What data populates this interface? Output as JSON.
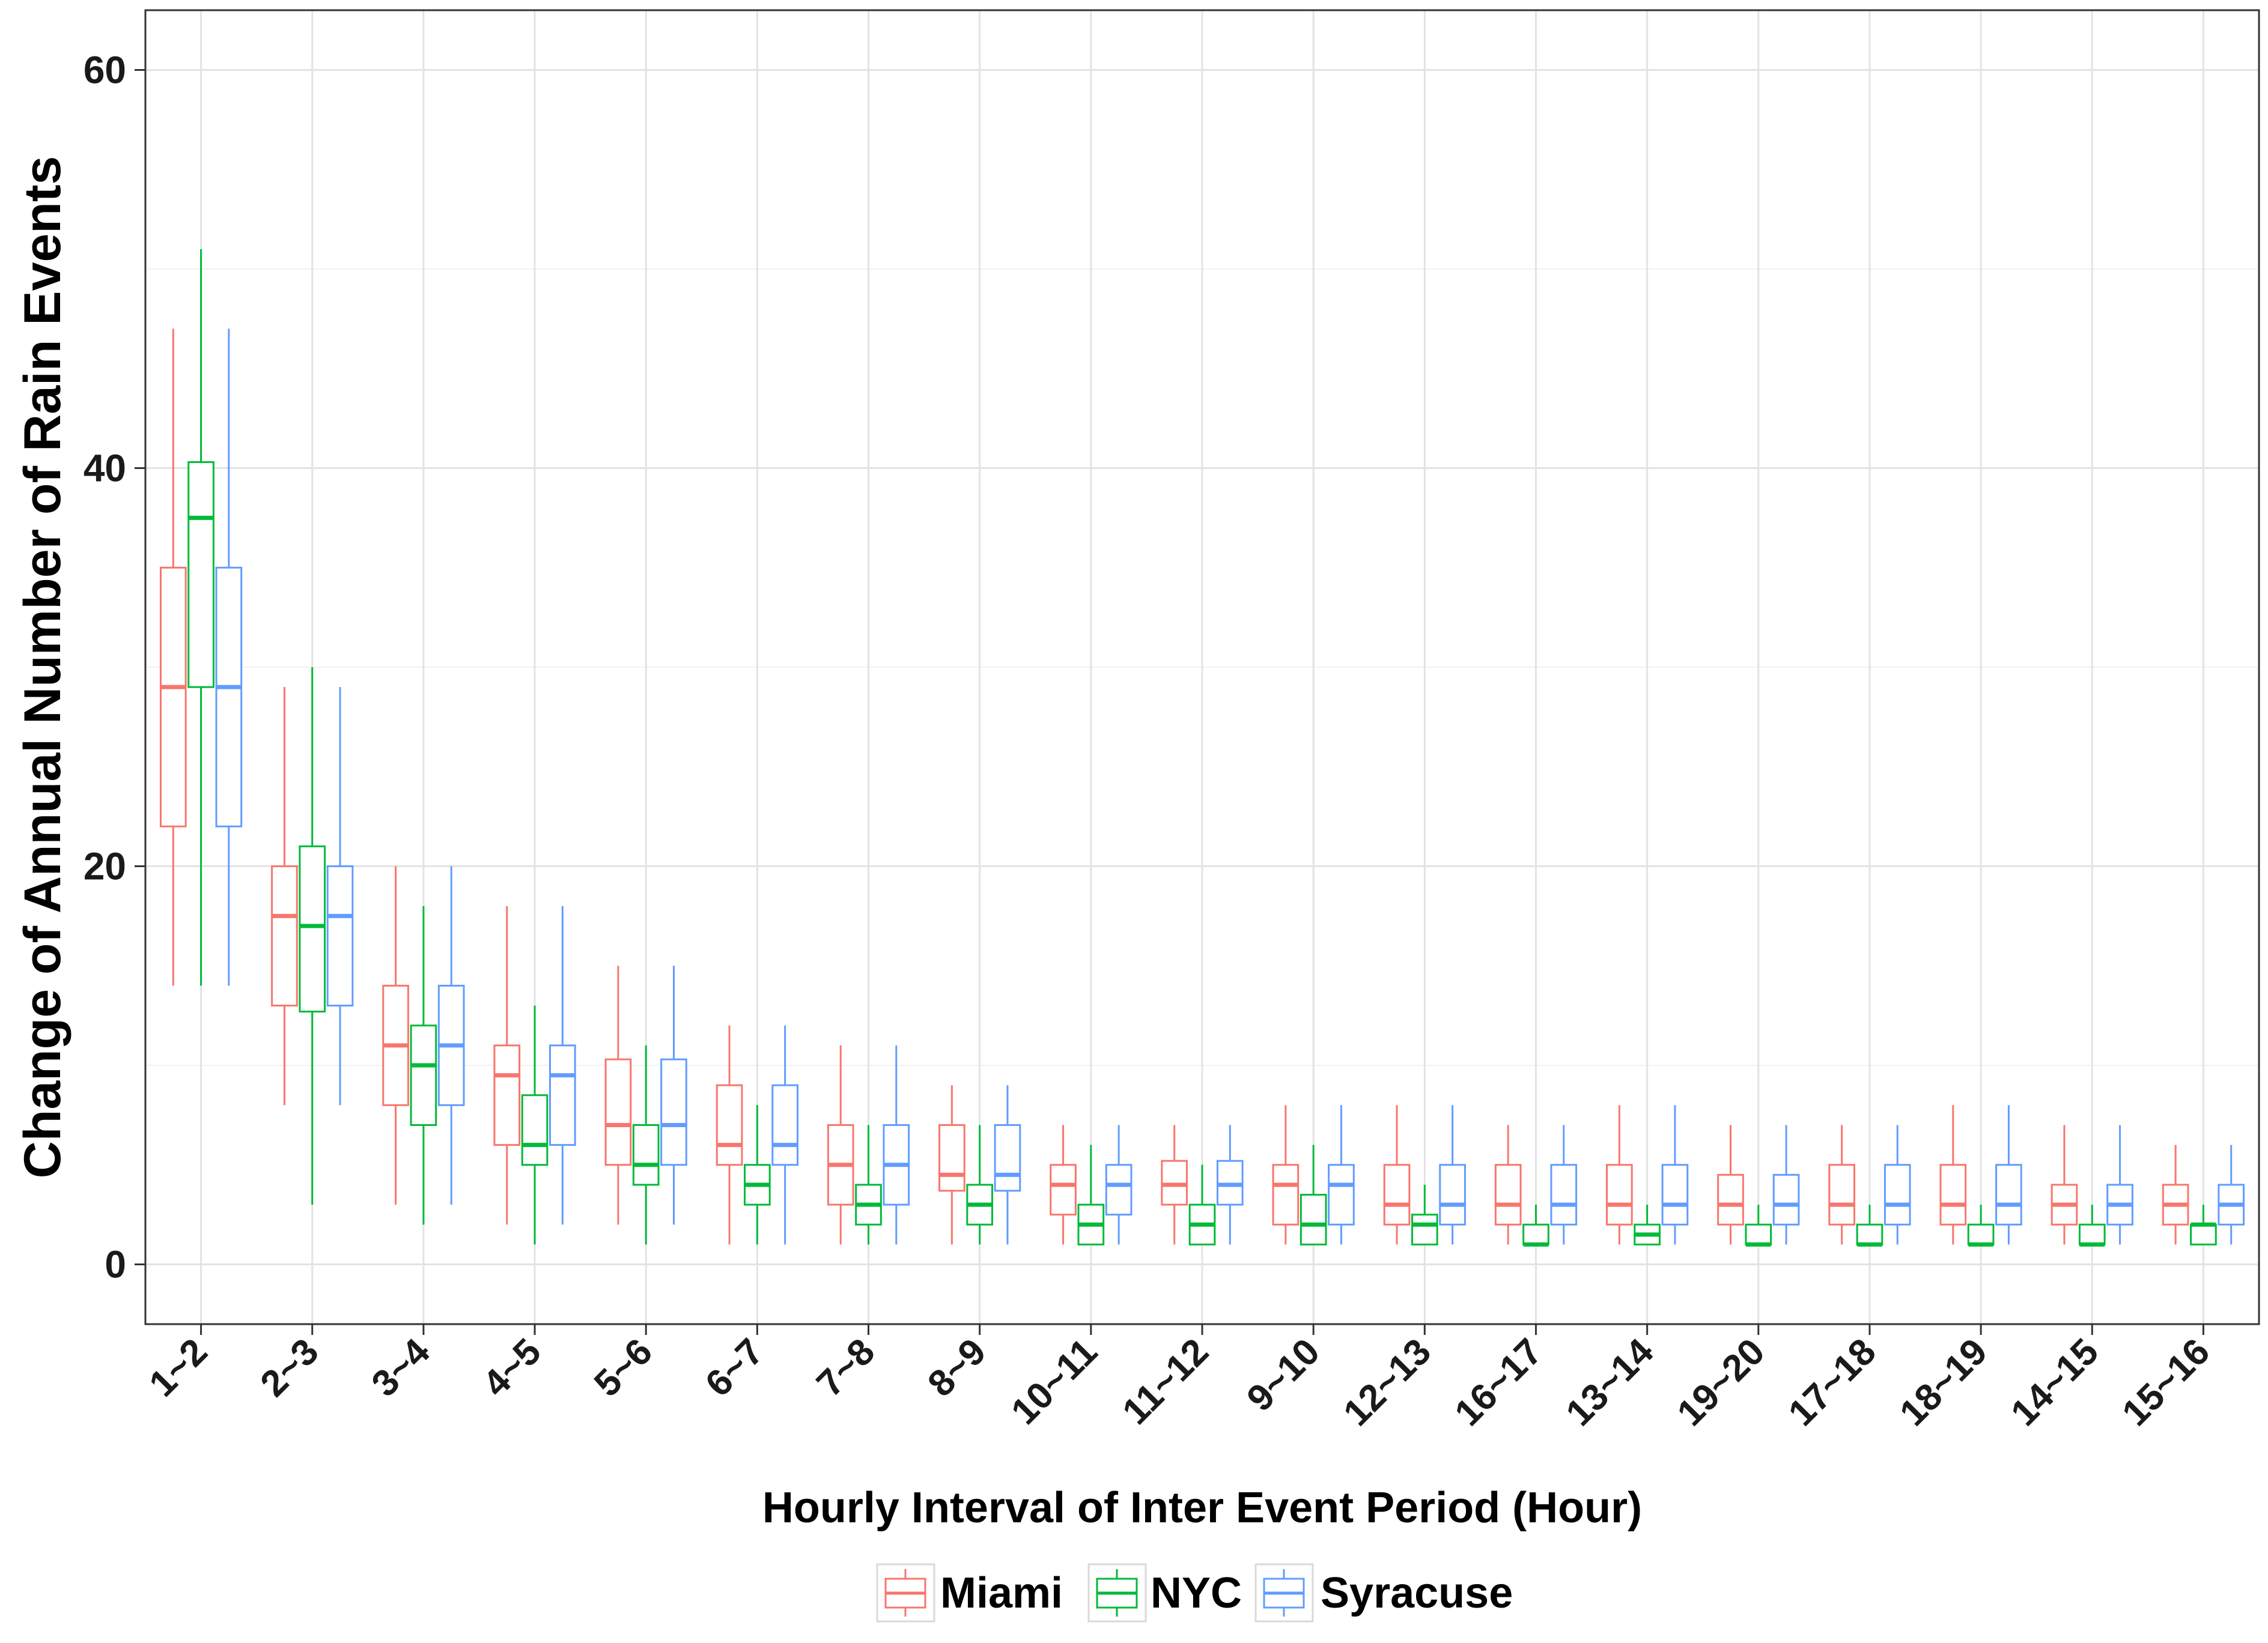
{
  "chart_data": {
    "type": "boxplot",
    "xlabel": "Hourly Interval of Inter Event Period (Hour)",
    "ylabel": "Change of Annual Number of Rain Events",
    "ylim": [
      -3,
      63
    ],
    "yticks": [
      0,
      20,
      40,
      60
    ],
    "grid": true,
    "legend_position": "bottom",
    "categories": [
      "1~2",
      "2~3",
      "3~4",
      "4~5",
      "5~6",
      "6~7",
      "7~8",
      "8~9",
      "10~11",
      "11~12",
      "9~10",
      "12~13",
      "16~17",
      "13~14",
      "19~20",
      "17~18",
      "18~19",
      "14~15",
      "15~16"
    ],
    "series": [
      {
        "name": "Miami",
        "color": "#F8766D",
        "boxes": [
          {
            "min": 14,
            "q1": 22,
            "median": 29,
            "q3": 35,
            "max": 47
          },
          {
            "min": 8,
            "q1": 13,
            "median": 17.5,
            "q3": 20,
            "max": 29
          },
          {
            "min": 3,
            "q1": 8,
            "median": 11,
            "q3": 14,
            "max": 20
          },
          {
            "min": 2,
            "q1": 6,
            "median": 9.5,
            "q3": 11,
            "max": 18
          },
          {
            "min": 2,
            "q1": 5,
            "median": 7,
            "q3": 10.3,
            "max": 15
          },
          {
            "min": 1,
            "q1": 5,
            "median": 6,
            "q3": 9,
            "max": 12
          },
          {
            "min": 1,
            "q1": 3,
            "median": 5,
            "q3": 7,
            "max": 11
          },
          {
            "min": 1,
            "q1": 3.7,
            "median": 4.5,
            "q3": 7,
            "max": 9
          },
          {
            "min": 1,
            "q1": 2.5,
            "median": 4,
            "q3": 5,
            "max": 7
          },
          {
            "min": 1,
            "q1": 3,
            "median": 4,
            "q3": 5.2,
            "max": 7
          },
          {
            "min": 1,
            "q1": 2,
            "median": 4,
            "q3": 5,
            "max": 8
          },
          {
            "min": 1,
            "q1": 2,
            "median": 3,
            "q3": 5,
            "max": 8
          },
          {
            "min": 1,
            "q1": 2,
            "median": 3,
            "q3": 5,
            "max": 7
          },
          {
            "min": 1,
            "q1": 2,
            "median": 3,
            "q3": 5,
            "max": 8
          },
          {
            "min": 1,
            "q1": 2,
            "median": 3,
            "q3": 4.5,
            "max": 7
          },
          {
            "min": 1,
            "q1": 2,
            "median": 3,
            "q3": 5,
            "max": 7
          },
          {
            "min": 1,
            "q1": 2,
            "median": 3,
            "q3": 5,
            "max": 8
          },
          {
            "min": 1,
            "q1": 2,
            "median": 3,
            "q3": 4,
            "max": 7
          },
          {
            "min": 1,
            "q1": 2,
            "median": 3,
            "q3": 4,
            "max": 6
          }
        ]
      },
      {
        "name": "NYC",
        "color": "#00BA38",
        "boxes": [
          {
            "min": 14,
            "q1": 29,
            "median": 37.5,
            "q3": 40.3,
            "max": 51
          },
          {
            "min": 3,
            "q1": 12.7,
            "median": 17,
            "q3": 21,
            "max": 30
          },
          {
            "min": 2,
            "q1": 7,
            "median": 10,
            "q3": 12,
            "max": 18
          },
          {
            "min": 1,
            "q1": 5,
            "median": 6,
            "q3": 8.5,
            "max": 13
          },
          {
            "min": 1,
            "q1": 4,
            "median": 5,
            "q3": 7,
            "max": 11
          },
          {
            "min": 1,
            "q1": 3,
            "median": 4,
            "q3": 5,
            "max": 8
          },
          {
            "min": 1,
            "q1": 2,
            "median": 3,
            "q3": 4,
            "max": 7
          },
          {
            "min": 1,
            "q1": 2,
            "median": 3,
            "q3": 4,
            "max": 7
          },
          {
            "min": 1,
            "q1": 1,
            "median": 2,
            "q3": 3,
            "max": 6
          },
          {
            "min": 1,
            "q1": 1,
            "median": 2,
            "q3": 3,
            "max": 5
          },
          {
            "min": 1,
            "q1": 1,
            "median": 2,
            "q3": 3.5,
            "max": 6
          },
          {
            "min": 1,
            "q1": 1,
            "median": 2,
            "q3": 2.5,
            "max": 4
          },
          {
            "min": 1,
            "q1": 1,
            "median": 1,
            "q3": 2,
            "max": 3
          },
          {
            "min": 1,
            "q1": 1,
            "median": 1.5,
            "q3": 2,
            "max": 3
          },
          {
            "min": 1,
            "q1": 1,
            "median": 1,
            "q3": 2,
            "max": 3
          },
          {
            "min": 1,
            "q1": 1,
            "median": 1,
            "q3": 2,
            "max": 3
          },
          {
            "min": 1,
            "q1": 1,
            "median": 1,
            "q3": 2,
            "max": 3
          },
          {
            "min": 1,
            "q1": 1,
            "median": 1,
            "q3": 2,
            "max": 3
          },
          {
            "min": 1,
            "q1": 1,
            "median": 2,
            "q3": 2,
            "max": 3
          }
        ]
      },
      {
        "name": "Syracuse",
        "color": "#619CFF",
        "boxes": [
          {
            "min": 14,
            "q1": 22,
            "median": 29,
            "q3": 35,
            "max": 47
          },
          {
            "min": 8,
            "q1": 13,
            "median": 17.5,
            "q3": 20,
            "max": 29
          },
          {
            "min": 3,
            "q1": 8,
            "median": 11,
            "q3": 14,
            "max": 20
          },
          {
            "min": 2,
            "q1": 6,
            "median": 9.5,
            "q3": 11,
            "max": 18
          },
          {
            "min": 2,
            "q1": 5,
            "median": 7,
            "q3": 10.3,
            "max": 15
          },
          {
            "min": 1,
            "q1": 5,
            "median": 6,
            "q3": 9,
            "max": 12
          },
          {
            "min": 1,
            "q1": 3,
            "median": 5,
            "q3": 7,
            "max": 11
          },
          {
            "min": 1,
            "q1": 3.7,
            "median": 4.5,
            "q3": 7,
            "max": 9
          },
          {
            "min": 1,
            "q1": 2.5,
            "median": 4,
            "q3": 5,
            "max": 7
          },
          {
            "min": 1,
            "q1": 3,
            "median": 4,
            "q3": 5.2,
            "max": 7
          },
          {
            "min": 1,
            "q1": 2,
            "median": 4,
            "q3": 5,
            "max": 8
          },
          {
            "min": 1,
            "q1": 2,
            "median": 3,
            "q3": 5,
            "max": 8
          },
          {
            "min": 1,
            "q1": 2,
            "median": 3,
            "q3": 5,
            "max": 7
          },
          {
            "min": 1,
            "q1": 2,
            "median": 3,
            "q3": 5,
            "max": 8
          },
          {
            "min": 1,
            "q1": 2,
            "median": 3,
            "q3": 4.5,
            "max": 7
          },
          {
            "min": 1,
            "q1": 2,
            "median": 3,
            "q3": 5,
            "max": 7
          },
          {
            "min": 1,
            "q1": 2,
            "median": 3,
            "q3": 5,
            "max": 8
          },
          {
            "min": 1,
            "q1": 2,
            "median": 3,
            "q3": 4,
            "max": 7
          },
          {
            "min": 1,
            "q1": 2,
            "median": 3,
            "q3": 4,
            "max": 6
          }
        ]
      }
    ]
  }
}
